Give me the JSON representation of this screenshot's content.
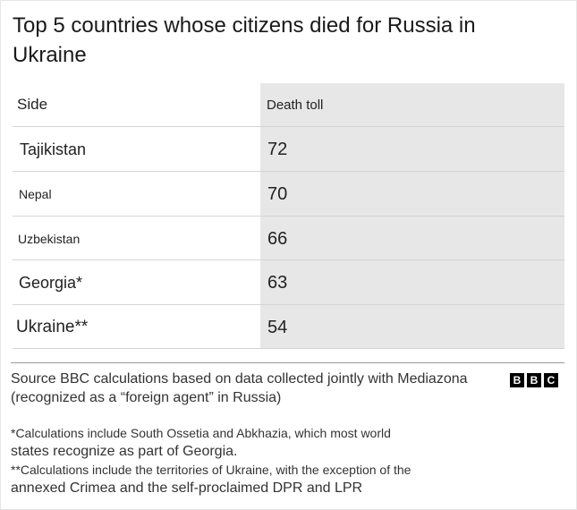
{
  "chart_data": {
    "type": "table",
    "title": "Top 5 countries whose citizens died for Russia in Ukraine",
    "columns": [
      "Side",
      "Death toll"
    ],
    "categories": [
      "Tajikistan",
      "Nepal",
      "Uzbekistan",
      "Georgia*",
      "Ukraine**"
    ],
    "values": [
      72,
      70,
      66,
      63,
      54
    ],
    "rows": [
      {
        "country": "Tajikistan",
        "value": "72"
      },
      {
        "country": "Nepal",
        "value": "70"
      },
      {
        "country": "Uzbekistan",
        "value": "66"
      },
      {
        "country": "Georgia*",
        "value": "63"
      },
      {
        "country": "Ukraine**",
        "value": "54"
      }
    ]
  },
  "footer": {
    "source": "Source BBC calculations based on data collected jointly with Mediazona (recognized as a “foreign agent” in Russia)",
    "logo": [
      "B",
      "B",
      "C"
    ],
    "note1_line1": "*Calculations include South Ossetia and Abkhazia, which most world",
    "note1_line2": "states recognize as part of Georgia.",
    "note2_line1": "**Calculations include the territories of Ukraine, with the exception of the",
    "note2_line2": "annexed Crimea and the self-proclaimed DPR and LPR"
  },
  "colors": {
    "value_column_bg": "#e7e7e7",
    "text": "#222222",
    "logo_bg": "#000000"
  }
}
